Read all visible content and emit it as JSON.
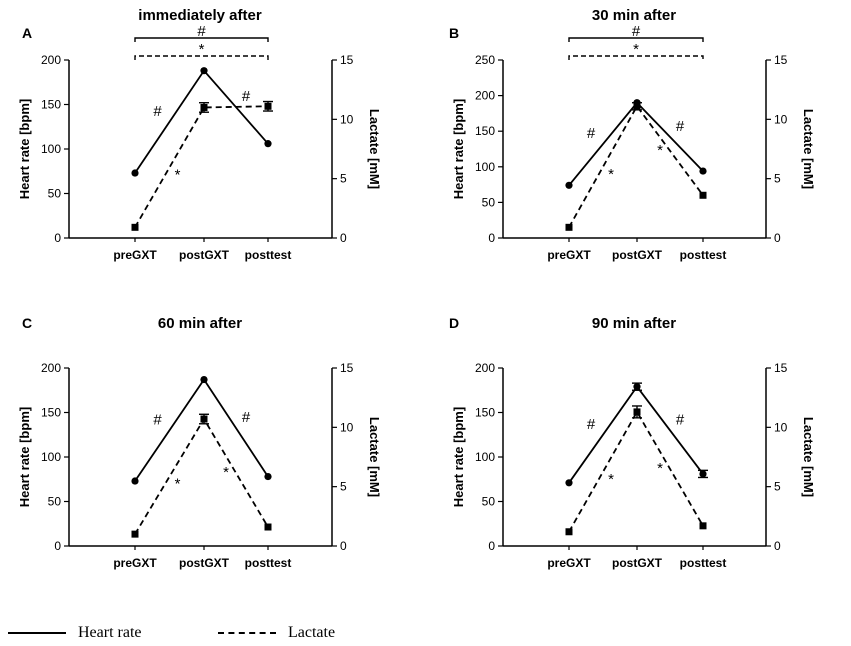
{
  "chart_data": [
    {
      "type": "line",
      "panel_label": "A",
      "title": "immediately after",
      "categories": [
        "preGXT",
        "postGXT",
        "posttest"
      ],
      "ylabel": "Heart rate [bpm]",
      "ylim": [
        0,
        200
      ],
      "yticks": [
        0,
        50,
        100,
        150,
        200
      ],
      "y2label": "Lactate [mM]",
      "y2lim": [
        0,
        15
      ],
      "y2ticks": [
        0,
        5,
        10,
        15
      ],
      "series": [
        {
          "name": "Heart rate",
          "axis": "left",
          "style": "solid",
          "marker": "circle",
          "values": [
            73,
            188,
            106
          ],
          "errors": [
            0,
            0,
            0
          ]
        },
        {
          "name": "Lactate",
          "axis": "right",
          "style": "dashed",
          "marker": "square",
          "values": [
            0.9,
            11.0,
            11.1
          ],
          "errors": [
            0,
            0.4,
            0.4
          ]
        }
      ],
      "annotations": [
        {
          "text": "#",
          "from": 0,
          "to": 1,
          "near": "Heart rate",
          "side": "above"
        },
        {
          "text": "#",
          "from": 1,
          "to": 2,
          "near": "Heart rate",
          "side": "above"
        },
        {
          "text": "*",
          "from": 0,
          "to": 1,
          "near": "Lactate",
          "side": "right"
        }
      ],
      "brackets": [
        {
          "text": "#",
          "from": 0,
          "to": 2,
          "style": "solid",
          "level": 1
        },
        {
          "text": "*",
          "from": 0,
          "to": 2,
          "style": "dashed",
          "level": 2
        }
      ]
    },
    {
      "type": "line",
      "panel_label": "B",
      "title": "30 min after",
      "categories": [
        "preGXT",
        "postGXT",
        "posttest"
      ],
      "ylabel": "Heart rate [bpm]",
      "ylim": [
        0,
        250
      ],
      "yticks": [
        0,
        50,
        100,
        150,
        200,
        250
      ],
      "y2label": "Lactate [mM]",
      "y2lim": [
        0,
        15
      ],
      "y2ticks": [
        0,
        5,
        10,
        15
      ],
      "series": [
        {
          "name": "Heart rate",
          "axis": "left",
          "style": "solid",
          "marker": "circle",
          "values": [
            74,
            190,
            94
          ],
          "errors": [
            0,
            0,
            0
          ]
        },
        {
          "name": "Lactate",
          "axis": "right",
          "style": "dashed",
          "marker": "square",
          "values": [
            0.9,
            11.1,
            3.6
          ],
          "errors": [
            0,
            0.3,
            0
          ]
        }
      ],
      "annotations": [
        {
          "text": "#",
          "from": 0,
          "to": 1,
          "near": "Heart rate",
          "side": "above"
        },
        {
          "text": "#",
          "from": 1,
          "to": 2,
          "near": "Heart rate",
          "side": "above"
        },
        {
          "text": "*",
          "from": 0,
          "to": 1,
          "near": "Lactate",
          "side": "right"
        },
        {
          "text": "*",
          "from": 1,
          "to": 2,
          "near": "Lactate",
          "side": "left"
        }
      ],
      "brackets": [
        {
          "text": "#",
          "from": 0,
          "to": 2,
          "style": "solid",
          "level": 1
        },
        {
          "text": "*",
          "from": 0,
          "to": 2,
          "style": "dashed",
          "level": 2
        }
      ]
    },
    {
      "type": "line",
      "panel_label": "C",
      "title": "60 min after",
      "categories": [
        "preGXT",
        "postGXT",
        "posttest"
      ],
      "ylabel": "Heart rate [bpm]",
      "ylim": [
        0,
        200
      ],
      "yticks": [
        0,
        50,
        100,
        150,
        200
      ],
      "y2label": "Lactate [mM]",
      "y2lim": [
        0,
        15
      ],
      "y2ticks": [
        0,
        5,
        10,
        15
      ],
      "series": [
        {
          "name": "Heart rate",
          "axis": "left",
          "style": "solid",
          "marker": "circle",
          "values": [
            73,
            187,
            78
          ],
          "errors": [
            0,
            0,
            0
          ]
        },
        {
          "name": "Lactate",
          "axis": "right",
          "style": "dashed",
          "marker": "square",
          "values": [
            1.0,
            10.7,
            1.6
          ],
          "errors": [
            0,
            0.4,
            0
          ]
        }
      ],
      "annotations": [
        {
          "text": "#",
          "from": 0,
          "to": 1,
          "near": "Heart rate",
          "side": "above"
        },
        {
          "text": "#",
          "from": 1,
          "to": 2,
          "near": "Heart rate",
          "side": "above"
        },
        {
          "text": "*",
          "from": 0,
          "to": 1,
          "near": "Lactate",
          "side": "right"
        },
        {
          "text": "*",
          "from": 1,
          "to": 2,
          "near": "Lactate",
          "side": "left"
        }
      ],
      "brackets": []
    },
    {
      "type": "line",
      "panel_label": "D",
      "title": "90 min after",
      "categories": [
        "preGXT",
        "postGXT",
        "posttest"
      ],
      "ylabel": "Heart rate [bpm]",
      "ylim": [
        0,
        200
      ],
      "yticks": [
        0,
        50,
        100,
        150,
        200
      ],
      "y2label": "Lactate [mM]",
      "y2lim": [
        0,
        15
      ],
      "y2ticks": [
        0,
        5,
        10,
        15
      ],
      "series": [
        {
          "name": "Heart rate",
          "axis": "left",
          "style": "solid",
          "marker": "circle",
          "values": [
            71,
            179,
            81
          ],
          "errors": [
            0,
            4,
            4
          ]
        },
        {
          "name": "Lactate",
          "axis": "right",
          "style": "dashed",
          "marker": "square",
          "values": [
            1.2,
            11.3,
            1.7
          ],
          "errors": [
            0,
            0.5,
            0
          ]
        }
      ],
      "annotations": [
        {
          "text": "#",
          "from": 0,
          "to": 1,
          "near": "Heart rate",
          "side": "above"
        },
        {
          "text": "#",
          "from": 1,
          "to": 2,
          "near": "Heart rate",
          "side": "above"
        },
        {
          "text": "*",
          "from": 0,
          "to": 1,
          "near": "Lactate",
          "side": "right"
        },
        {
          "text": "*",
          "from": 1,
          "to": 2,
          "near": "Lactate",
          "side": "left"
        }
      ],
      "brackets": []
    }
  ],
  "legend": {
    "heart_rate": "Heart rate",
    "lactate": "Lactate"
  }
}
